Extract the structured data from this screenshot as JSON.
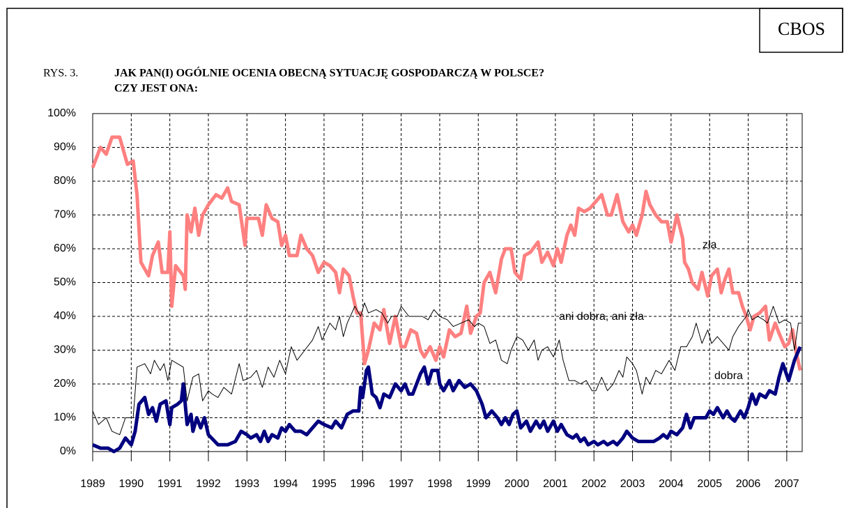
{
  "chart_data": {
    "type": "line",
    "source": "CBOS",
    "label": "RYS. 3.",
    "title": "JAK PAN(I) OGÓLNIE OCENIA OBECNĄ SYTUACJĘ GOSPODARCZĄ W POLSCE?",
    "subtitle": "CZY JEST ONA:",
    "xlim": [
      1989,
      2007.4
    ],
    "xticks": [
      1989,
      1990,
      1991,
      1992,
      1993,
      1994,
      1995,
      1996,
      1997,
      1998,
      1999,
      2000,
      2001,
      2002,
      2003,
      2004,
      2005,
      2006,
      2007
    ],
    "ylim": [
      0,
      100
    ],
    "yticks": [
      {
        "value": 0,
        "label": "0%"
      },
      {
        "value": 10,
        "label": "10%"
      },
      {
        "value": 20,
        "label": "20%"
      },
      {
        "value": 30,
        "label": "30%"
      },
      {
        "value": 40,
        "label": "40%"
      },
      {
        "value": 50,
        "label": "50%"
      },
      {
        "value": 60,
        "label": "60%"
      },
      {
        "value": 70,
        "label": "70%"
      },
      {
        "value": 80,
        "label": "80%"
      },
      {
        "value": 90,
        "label": "90%"
      },
      {
        "value": 100,
        "label": "100%"
      }
    ],
    "grid": true,
    "series": [
      {
        "name": "zła",
        "color": "#ff8080",
        "x": [
          1989.0,
          1989.2,
          1989.35,
          1989.5,
          1989.7,
          1989.9,
          1990.05,
          1990.15,
          1990.25,
          1990.45,
          1990.55,
          1990.7,
          1990.8,
          1990.95,
          1991.0,
          1991.05,
          1991.15,
          1991.35,
          1991.4,
          1991.45,
          1991.55,
          1991.65,
          1991.75,
          1991.85,
          1992.0,
          1992.2,
          1992.35,
          1992.5,
          1992.6,
          1992.8,
          1992.95,
          1993.0,
          1993.3,
          1993.4,
          1993.5,
          1993.65,
          1993.8,
          1993.9,
          1994.0,
          1994.1,
          1994.3,
          1994.4,
          1994.55,
          1994.7,
          1994.85,
          1995.0,
          1995.15,
          1995.3,
          1995.4,
          1995.5,
          1995.65,
          1995.75,
          1995.85,
          1995.95,
          1996.05,
          1996.15,
          1996.3,
          1996.45,
          1996.55,
          1996.7,
          1996.85,
          1997.0,
          1997.1,
          1997.25,
          1997.4,
          1997.5,
          1997.6,
          1997.75,
          1997.9,
          1998.0,
          1998.1,
          1998.25,
          1998.4,
          1998.55,
          1998.7,
          1998.8,
          1998.95,
          1999.05,
          1999.15,
          1999.3,
          1999.45,
          1999.6,
          1999.7,
          1999.85,
          1999.95,
          2000.1,
          2000.2,
          2000.35,
          2000.55,
          2000.65,
          2000.8,
          2000.95,
          2001.05,
          2001.15,
          2001.3,
          2001.4,
          2001.5,
          2001.6,
          2001.75,
          2001.9,
          2002.05,
          2002.2,
          2002.35,
          2002.45,
          2002.6,
          2002.75,
          2002.9,
          2003.0,
          2003.1,
          2003.25,
          2003.35,
          2003.45,
          2003.6,
          2003.75,
          2003.9,
          2004.0,
          2004.15,
          2004.3,
          2004.35,
          2004.45,
          2004.55,
          2004.7,
          2004.8,
          2004.95,
          2005.05,
          2005.2,
          2005.3,
          2005.4,
          2005.5,
          2005.6,
          2005.75,
          2005.85,
          2005.95,
          2006.05,
          2006.15,
          2006.3,
          2006.45,
          2006.55,
          2006.7,
          2006.8,
          2006.95,
          2007.05,
          2007.15,
          2007.25,
          2007.35
        ],
        "values": [
          84,
          90,
          88,
          93,
          93,
          85,
          86,
          76,
          56,
          52,
          58,
          62,
          53,
          53,
          65,
          43,
          55,
          52,
          48,
          70,
          65,
          72,
          64,
          70,
          73,
          76,
          75,
          78,
          74,
          73,
          61,
          69,
          69,
          64,
          73,
          69,
          68,
          61,
          64,
          58,
          58,
          64,
          60,
          58,
          53,
          56,
          55,
          53,
          47,
          54,
          52,
          46,
          41,
          41,
          26,
          30,
          38,
          36,
          42,
          32,
          40,
          31,
          31,
          36,
          35,
          30,
          28,
          31,
          27,
          31,
          28,
          36,
          34,
          35,
          43,
          35,
          40,
          41,
          50,
          53,
          47,
          57,
          60,
          60,
          53,
          51,
          58,
          59,
          62,
          56,
          59,
          55,
          60,
          56,
          64,
          67,
          64,
          72,
          71,
          72,
          74,
          76,
          70,
          70,
          76,
          68,
          65,
          67,
          64,
          70,
          77,
          73,
          70,
          68,
          68,
          62,
          70,
          63,
          56,
          54,
          50,
          48,
          53,
          46,
          52,
          54,
          47,
          51,
          54,
          47,
          47,
          43,
          40,
          36,
          40,
          41,
          43,
          33,
          38,
          35,
          31,
          32,
          36,
          29,
          24
        ]
      },
      {
        "name": "ani dobra, ani zła",
        "color": "#000000",
        "x": [
          1989.0,
          1989.15,
          1989.35,
          1989.5,
          1989.7,
          1989.85,
          1990.05,
          1990.15,
          1990.35,
          1990.5,
          1990.6,
          1990.75,
          1990.85,
          1990.95,
          1991.05,
          1991.2,
          1991.35,
          1991.45,
          1991.6,
          1991.75,
          1991.85,
          1992.0,
          1992.1,
          1992.25,
          1992.4,
          1992.6,
          1992.8,
          1992.9,
          1993.1,
          1993.25,
          1993.4,
          1993.55,
          1993.7,
          1993.85,
          1994.0,
          1994.15,
          1994.3,
          1994.5,
          1994.7,
          1994.85,
          1994.95,
          1995.15,
          1995.3,
          1995.4,
          1995.5,
          1995.6,
          1995.8,
          1995.95,
          1996.05,
          1996.15,
          1996.35,
          1996.5,
          1996.65,
          1996.75,
          1996.9,
          1997.0,
          1997.2,
          1997.4,
          1997.55,
          1997.7,
          1997.85,
          1998.0,
          1998.2,
          1998.35,
          1998.55,
          1998.75,
          1998.9,
          1999.0,
          1999.15,
          1999.3,
          1999.45,
          1999.6,
          1999.75,
          1999.85,
          2000.0,
          2000.15,
          2000.3,
          2000.45,
          2000.55,
          2000.65,
          2000.8,
          2000.95,
          2001.1,
          2001.2,
          2001.35,
          2001.5,
          2001.65,
          2001.8,
          2001.95,
          2002.05,
          2002.2,
          2002.35,
          2002.5,
          2002.65,
          2002.75,
          2002.85,
          2003.0,
          2003.1,
          2003.25,
          2003.35,
          2003.45,
          2003.6,
          2003.75,
          2003.95,
          2004.1,
          2004.25,
          2004.4,
          2004.55,
          2004.65,
          2004.8,
          2004.95,
          2005.05,
          2005.2,
          2005.35,
          2005.5,
          2005.6,
          2005.75,
          2005.95,
          2006.0,
          2006.1,
          2006.25,
          2006.4,
          2006.5,
          2006.65,
          2006.8,
          2006.95,
          2007.1,
          2007.2,
          2007.3,
          2007.38
        ],
        "values": [
          12,
          8,
          10,
          6,
          5,
          10,
          10,
          25,
          26,
          23,
          27,
          24,
          26,
          21,
          27,
          26,
          25,
          15,
          22,
          23,
          15,
          18,
          17,
          16,
          19,
          17,
          26,
          21,
          22,
          24,
          19,
          25,
          22,
          27,
          23,
          31,
          27,
          30,
          33,
          37,
          33,
          38,
          36,
          40,
          34,
          38,
          43,
          40,
          44,
          41,
          42,
          41,
          38,
          40,
          40,
          43,
          40,
          40,
          40,
          39,
          42,
          40,
          39,
          37,
          38,
          39,
          37,
          38,
          37,
          32,
          33,
          27,
          26,
          30,
          34,
          33,
          30,
          33,
          27,
          30,
          31,
          28,
          33,
          27,
          21,
          21,
          20,
          21,
          18,
          18,
          22,
          18,
          20,
          24,
          22,
          28,
          26,
          24,
          17,
          22,
          20,
          24,
          23,
          27,
          24,
          31,
          31,
          34,
          38,
          32,
          36,
          32,
          34,
          32,
          30,
          34,
          37,
          40,
          42,
          39,
          40,
          39,
          38,
          43,
          38,
          39,
          38,
          30,
          38,
          38
        ]
      },
      {
        "name": "dobra",
        "color": "#000080",
        "x": [
          1989.0,
          1989.2,
          1989.4,
          1989.55,
          1989.7,
          1989.85,
          1990.0,
          1990.1,
          1990.2,
          1990.35,
          1990.45,
          1990.55,
          1990.65,
          1990.75,
          1990.9,
          1991.0,
          1991.05,
          1991.2,
          1991.3,
          1991.35,
          1991.45,
          1991.55,
          1991.6,
          1991.7,
          1991.8,
          1991.9,
          1992.0,
          1992.25,
          1992.5,
          1992.7,
          1992.85,
          1993.0,
          1993.1,
          1993.25,
          1993.35,
          1993.45,
          1993.55,
          1993.65,
          1993.8,
          1993.9,
          1994.0,
          1994.1,
          1994.25,
          1994.4,
          1994.55,
          1994.7,
          1994.85,
          1995.0,
          1995.2,
          1995.3,
          1995.45,
          1995.6,
          1995.75,
          1995.9,
          1995.95,
          1996.0,
          1996.1,
          1996.15,
          1996.25,
          1996.35,
          1996.45,
          1996.55,
          1996.7,
          1996.85,
          1997.0,
          1997.1,
          1997.2,
          1997.3,
          1997.5,
          1997.6,
          1997.7,
          1997.8,
          1997.95,
          1998.0,
          1998.1,
          1998.25,
          1998.35,
          1998.5,
          1998.65,
          1998.8,
          1998.95,
          1999.1,
          1999.2,
          1999.35,
          1999.5,
          1999.6,
          1999.7,
          1999.8,
          1999.9,
          2000.0,
          2000.1,
          2000.25,
          2000.35,
          2000.5,
          2000.6,
          2000.7,
          2000.8,
          2000.95,
          2001.05,
          2001.15,
          2001.3,
          2001.45,
          2001.55,
          2001.65,
          2001.75,
          2001.85,
          2002.0,
          2002.1,
          2002.25,
          2002.35,
          2002.5,
          2002.6,
          2002.75,
          2002.85,
          2003.0,
          2003.15,
          2003.35,
          2003.55,
          2003.7,
          2003.8,
          2003.9,
          2004.0,
          2004.15,
          2004.3,
          2004.4,
          2004.5,
          2004.6,
          2004.75,
          2004.9,
          2005.0,
          2005.1,
          2005.2,
          2005.35,
          2005.45,
          2005.55,
          2005.65,
          2005.8,
          2005.9,
          2006.0,
          2006.1,
          2006.2,
          2006.3,
          2006.45,
          2006.55,
          2006.7,
          2006.8,
          2006.9,
          2007.05,
          2007.2,
          2007.35
        ],
        "values": [
          2,
          1,
          1,
          0,
          1,
          4,
          2,
          6,
          14,
          16,
          11,
          13,
          9,
          14,
          15,
          8,
          13,
          14,
          15,
          20,
          8,
          11,
          6,
          10,
          7,
          10,
          5,
          2,
          2,
          3,
          6,
          5,
          4,
          5,
          3,
          6,
          3,
          5,
          4,
          7,
          6,
          8,
          6,
          6,
          5,
          7,
          9,
          8,
          7,
          9,
          7,
          11,
          12,
          12,
          19,
          16,
          24,
          25,
          17,
          16,
          13,
          17,
          16,
          20,
          18,
          20,
          17,
          17,
          23,
          25,
          20,
          24,
          24,
          20,
          18,
          21,
          18,
          21,
          19,
          20,
          18,
          14,
          10,
          12,
          10,
          8,
          10,
          8,
          11,
          12,
          7,
          9,
          6,
          9,
          7,
          9,
          6,
          9,
          6,
          8,
          5,
          4,
          5,
          3,
          4,
          2,
          3,
          2,
          3,
          2,
          3,
          2,
          4,
          6,
          4,
          3,
          3,
          3,
          4,
          5,
          4,
          6,
          5,
          7,
          11,
          7,
          10,
          10,
          10,
          12,
          11,
          13,
          10,
          12,
          10,
          9,
          12,
          10,
          13,
          17,
          14,
          17,
          16,
          18,
          17,
          22,
          26,
          21,
          27,
          31
        ]
      }
    ]
  }
}
